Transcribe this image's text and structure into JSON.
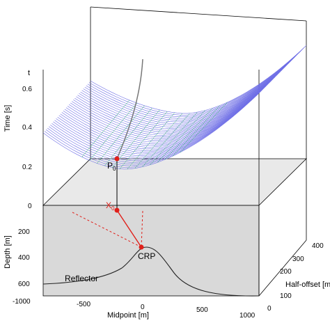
{
  "axes": {
    "time_label": "Time [s]",
    "time_var": "t",
    "depth_label": "Depth [m]",
    "midpoint_label": "Midpoint [m]",
    "halfoffset_label": "Half-offset [m]",
    "time_ticks": [
      "0.6",
      "0.4",
      "0.2",
      "0"
    ],
    "depth_ticks": [
      "200",
      "400",
      "600"
    ],
    "midpoint_ticks": [
      "-1000",
      "-500",
      "0",
      "500",
      "1000"
    ],
    "halfoffset_ticks": [
      "400",
      "300",
      "200",
      "100",
      "0"
    ]
  },
  "labels": {
    "p0_main": "P",
    "p0_sub": "0",
    "x0_main": "X",
    "x0_sub": "0",
    "crp": "CRP",
    "reflector": "Reflector"
  },
  "colors": {
    "surface_lines": "#6f6fe6",
    "highlight_lines": "#3cb878",
    "red_points": "#e0201a",
    "earth_fill": "#d9d9d9",
    "reflector": "#222222",
    "trajectory": "#777777"
  }
}
